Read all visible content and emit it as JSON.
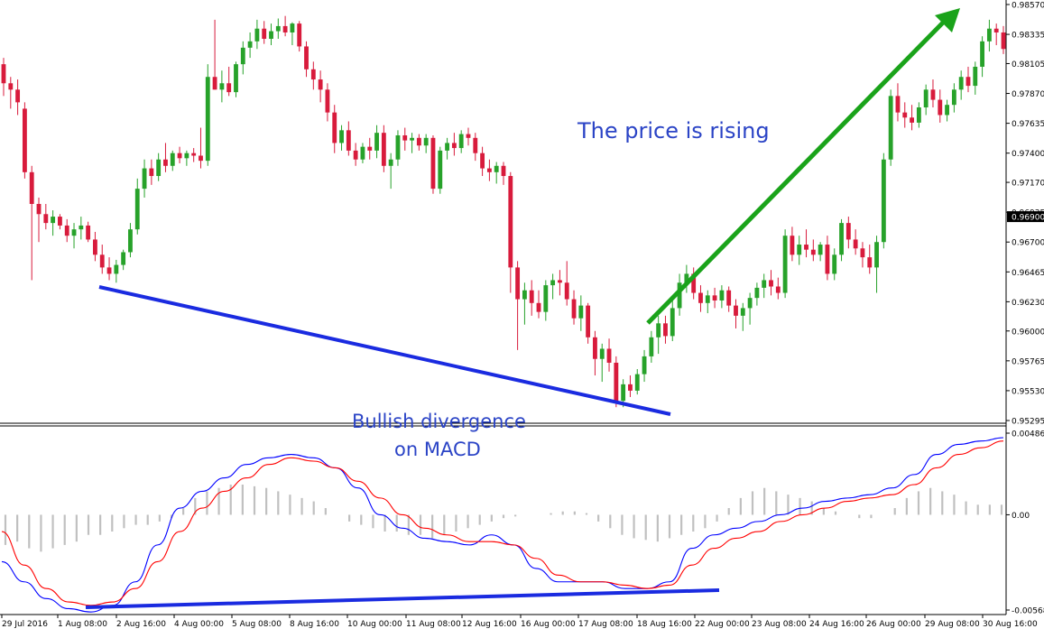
{
  "chart_data": {
    "type": "candlestick",
    "instrument_price_current": "0.96900",
    "price_axis": {
      "ticks": [
        "0.98570",
        "0.98335",
        "0.98105",
        "0.97870",
        "0.97635",
        "0.97400",
        "0.97170",
        "0.96935",
        "0.96700",
        "0.96465",
        "0.96230",
        "0.96000",
        "0.95765",
        "0.95530",
        "0.95295"
      ],
      "current_label": "0.96900",
      "ylim": [
        0.95295,
        0.9857
      ]
    },
    "macd_axis": {
      "ticks": [
        "0.004869",
        "0.00",
        "-0.005682"
      ],
      "ylim": [
        -0.005682,
        0.004869
      ]
    },
    "time_axis": {
      "labels": [
        "29 Jul 2016",
        "1 Aug 08:00",
        "2 Aug 16:00",
        "4 Aug 00:00",
        "5 Aug 08:00",
        "8 Aug 16:00",
        "10 Aug 00:00",
        "11 Aug 08:00",
        "12 Aug 16:00",
        "16 Aug 00:00",
        "17 Aug 08:00",
        "18 Aug 16:00",
        "22 Aug 00:00",
        "23 Aug 08:00",
        "24 Aug 16:00",
        "26 Aug 00:00",
        "29 Aug 08:00",
        "30 Aug 16:00"
      ]
    },
    "candles": [
      {
        "o": 0.981,
        "h": 0.9815,
        "l": 0.9785,
        "c": 0.9795
      },
      {
        "o": 0.9795,
        "h": 0.98,
        "l": 0.9775,
        "c": 0.979
      },
      {
        "o": 0.979,
        "h": 0.9798,
        "l": 0.977,
        "c": 0.978
      },
      {
        "o": 0.9775,
        "h": 0.978,
        "l": 0.972,
        "c": 0.9725
      },
      {
        "o": 0.9725,
        "h": 0.973,
        "l": 0.964,
        "c": 0.97
      },
      {
        "o": 0.97,
        "h": 0.9705,
        "l": 0.967,
        "c": 0.9692
      },
      {
        "o": 0.9692,
        "h": 0.97,
        "l": 0.968,
        "c": 0.9685
      },
      {
        "o": 0.9685,
        "h": 0.9695,
        "l": 0.9675,
        "c": 0.969
      },
      {
        "o": 0.969,
        "h": 0.9692,
        "l": 0.968,
        "c": 0.9683
      },
      {
        "o": 0.9683,
        "h": 0.9688,
        "l": 0.967,
        "c": 0.9675
      },
      {
        "o": 0.9675,
        "h": 0.9685,
        "l": 0.9665,
        "c": 0.968
      },
      {
        "o": 0.968,
        "h": 0.969,
        "l": 0.9672,
        "c": 0.9683
      },
      {
        "o": 0.9683,
        "h": 0.9686,
        "l": 0.967,
        "c": 0.9672
      },
      {
        "o": 0.9672,
        "h": 0.9678,
        "l": 0.9655,
        "c": 0.966
      },
      {
        "o": 0.966,
        "h": 0.9668,
        "l": 0.9645,
        "c": 0.965
      },
      {
        "o": 0.965,
        "h": 0.9658,
        "l": 0.964,
        "c": 0.9645
      },
      {
        "o": 0.9645,
        "h": 0.9656,
        "l": 0.9638,
        "c": 0.9652
      },
      {
        "o": 0.9652,
        "h": 0.9664,
        "l": 0.9648,
        "c": 0.9662
      },
      {
        "o": 0.9662,
        "h": 0.9685,
        "l": 0.9658,
        "c": 0.968
      },
      {
        "o": 0.968,
        "h": 0.972,
        "l": 0.9676,
        "c": 0.9712
      },
      {
        "o": 0.9712,
        "h": 0.9735,
        "l": 0.9705,
        "c": 0.9728
      },
      {
        "o": 0.9728,
        "h": 0.9735,
        "l": 0.9715,
        "c": 0.9722
      },
      {
        "o": 0.9722,
        "h": 0.974,
        "l": 0.9718,
        "c": 0.9735
      },
      {
        "o": 0.9735,
        "h": 0.9748,
        "l": 0.9725,
        "c": 0.973
      },
      {
        "o": 0.973,
        "h": 0.9742,
        "l": 0.9726,
        "c": 0.974
      },
      {
        "o": 0.974,
        "h": 0.9745,
        "l": 0.9732,
        "c": 0.9736
      },
      {
        "o": 0.9736,
        "h": 0.9742,
        "l": 0.973,
        "c": 0.974
      },
      {
        "o": 0.974,
        "h": 0.9744,
        "l": 0.9733,
        "c": 0.9738
      },
      {
        "o": 0.9738,
        "h": 0.976,
        "l": 0.9728,
        "c": 0.9734
      },
      {
        "o": 0.9734,
        "h": 0.981,
        "l": 0.973,
        "c": 0.98
      },
      {
        "o": 0.98,
        "h": 0.9845,
        "l": 0.979,
        "c": 0.979
      },
      {
        "o": 0.979,
        "h": 0.9805,
        "l": 0.978,
        "c": 0.9795
      },
      {
        "o": 0.9795,
        "h": 0.9808,
        "l": 0.9785,
        "c": 0.9788
      },
      {
        "o": 0.9788,
        "h": 0.9812,
        "l": 0.9784,
        "c": 0.981
      },
      {
        "o": 0.981,
        "h": 0.9828,
        "l": 0.9802,
        "c": 0.9823
      },
      {
        "o": 0.9823,
        "h": 0.9835,
        "l": 0.9815,
        "c": 0.9828
      },
      {
        "o": 0.9828,
        "h": 0.9845,
        "l": 0.9822,
        "c": 0.9838
      },
      {
        "o": 0.9838,
        "h": 0.9844,
        "l": 0.9826,
        "c": 0.983
      },
      {
        "o": 0.983,
        "h": 0.9842,
        "l": 0.9825,
        "c": 0.9836
      },
      {
        "o": 0.9836,
        "h": 0.9846,
        "l": 0.983,
        "c": 0.984
      },
      {
        "o": 0.984,
        "h": 0.9848,
        "l": 0.9832,
        "c": 0.9835
      },
      {
        "o": 0.9835,
        "h": 0.9843,
        "l": 0.9825,
        "c": 0.9842
      },
      {
        "o": 0.9842,
        "h": 0.9844,
        "l": 0.982,
        "c": 0.9824
      },
      {
        "o": 0.9824,
        "h": 0.9828,
        "l": 0.98,
        "c": 0.9806
      },
      {
        "o": 0.9806,
        "h": 0.9812,
        "l": 0.979,
        "c": 0.9798
      },
      {
        "o": 0.9798,
        "h": 0.9805,
        "l": 0.978,
        "c": 0.979
      },
      {
        "o": 0.979,
        "h": 0.9795,
        "l": 0.9765,
        "c": 0.9772
      },
      {
        "o": 0.9772,
        "h": 0.9778,
        "l": 0.974,
        "c": 0.9748
      },
      {
        "o": 0.9748,
        "h": 0.9762,
        "l": 0.9742,
        "c": 0.9758
      },
      {
        "o": 0.9758,
        "h": 0.9765,
        "l": 0.9738,
        "c": 0.9742
      },
      {
        "o": 0.9742,
        "h": 0.9748,
        "l": 0.973,
        "c": 0.9735
      },
      {
        "o": 0.9735,
        "h": 0.9748,
        "l": 0.9732,
        "c": 0.9745
      },
      {
        "o": 0.9745,
        "h": 0.9752,
        "l": 0.9735,
        "c": 0.9742
      },
      {
        "o": 0.9742,
        "h": 0.9762,
        "l": 0.9736,
        "c": 0.9756
      },
      {
        "o": 0.9756,
        "h": 0.9762,
        "l": 0.9725,
        "c": 0.973
      },
      {
        "o": 0.973,
        "h": 0.974,
        "l": 0.9712,
        "c": 0.9735
      },
      {
        "o": 0.9735,
        "h": 0.9758,
        "l": 0.973,
        "c": 0.9754
      },
      {
        "o": 0.9754,
        "h": 0.976,
        "l": 0.9742,
        "c": 0.975
      },
      {
        "o": 0.975,
        "h": 0.9756,
        "l": 0.974,
        "c": 0.9752
      },
      {
        "o": 0.9752,
        "h": 0.9755,
        "l": 0.9742,
        "c": 0.9746
      },
      {
        "o": 0.9746,
        "h": 0.9755,
        "l": 0.974,
        "c": 0.9752
      },
      {
        "o": 0.9752,
        "h": 0.9754,
        "l": 0.9708,
        "c": 0.9712
      },
      {
        "o": 0.9712,
        "h": 0.9745,
        "l": 0.9708,
        "c": 0.9742
      },
      {
        "o": 0.9742,
        "h": 0.9752,
        "l": 0.9735,
        "c": 0.9748
      },
      {
        "o": 0.9748,
        "h": 0.9756,
        "l": 0.9738,
        "c": 0.9744
      },
      {
        "o": 0.9744,
        "h": 0.9758,
        "l": 0.974,
        "c": 0.9755
      },
      {
        "o": 0.9755,
        "h": 0.976,
        "l": 0.9746,
        "c": 0.9752
      },
      {
        "o": 0.9752,
        "h": 0.9756,
        "l": 0.9734,
        "c": 0.974
      },
      {
        "o": 0.974,
        "h": 0.9745,
        "l": 0.9722,
        "c": 0.9728
      },
      {
        "o": 0.9728,
        "h": 0.9735,
        "l": 0.9718,
        "c": 0.9725
      },
      {
        "o": 0.9725,
        "h": 0.9733,
        "l": 0.9716,
        "c": 0.973
      },
      {
        "o": 0.973,
        "h": 0.9733,
        "l": 0.9715,
        "c": 0.9722
      },
      {
        "o": 0.9722,
        "h": 0.9725,
        "l": 0.963,
        "c": 0.965
      },
      {
        "o": 0.965,
        "h": 0.9655,
        "l": 0.9585,
        "c": 0.9625
      },
      {
        "o": 0.9625,
        "h": 0.9638,
        "l": 0.9605,
        "c": 0.9632
      },
      {
        "o": 0.9632,
        "h": 0.964,
        "l": 0.9612,
        "c": 0.9622
      },
      {
        "o": 0.9622,
        "h": 0.9632,
        "l": 0.961,
        "c": 0.9615
      },
      {
        "o": 0.9615,
        "h": 0.964,
        "l": 0.9608,
        "c": 0.9636
      },
      {
        "o": 0.9636,
        "h": 0.9645,
        "l": 0.9625,
        "c": 0.964
      },
      {
        "o": 0.964,
        "h": 0.9648,
        "l": 0.9628,
        "c": 0.9638
      },
      {
        "o": 0.9638,
        "h": 0.9655,
        "l": 0.962,
        "c": 0.9625
      },
      {
        "o": 0.9625,
        "h": 0.9632,
        "l": 0.9605,
        "c": 0.961
      },
      {
        "o": 0.961,
        "h": 0.9628,
        "l": 0.96,
        "c": 0.962
      },
      {
        "o": 0.962,
        "h": 0.9622,
        "l": 0.959,
        "c": 0.9595
      },
      {
        "o": 0.9595,
        "h": 0.96,
        "l": 0.9565,
        "c": 0.9578
      },
      {
        "o": 0.9578,
        "h": 0.959,
        "l": 0.956,
        "c": 0.9586
      },
      {
        "o": 0.9586,
        "h": 0.9594,
        "l": 0.9568,
        "c": 0.9575
      },
      {
        "o": 0.9575,
        "h": 0.958,
        "l": 0.954,
        "c": 0.9545
      },
      {
        "o": 0.9545,
        "h": 0.9562,
        "l": 0.954,
        "c": 0.9558
      },
      {
        "o": 0.9558,
        "h": 0.9565,
        "l": 0.9548,
        "c": 0.9553
      },
      {
        "o": 0.9553,
        "h": 0.957,
        "l": 0.955,
        "c": 0.9566
      },
      {
        "o": 0.9566,
        "h": 0.9585,
        "l": 0.956,
        "c": 0.958
      },
      {
        "o": 0.958,
        "h": 0.96,
        "l": 0.9575,
        "c": 0.9595
      },
      {
        "o": 0.9595,
        "h": 0.9612,
        "l": 0.9582,
        "c": 0.9606
      },
      {
        "o": 0.9606,
        "h": 0.9612,
        "l": 0.959,
        "c": 0.9596
      },
      {
        "o": 0.9596,
        "h": 0.9625,
        "l": 0.9592,
        "c": 0.9618
      },
      {
        "o": 0.9618,
        "h": 0.9645,
        "l": 0.9612,
        "c": 0.9638
      },
      {
        "o": 0.9638,
        "h": 0.9652,
        "l": 0.963,
        "c": 0.9645
      },
      {
        "o": 0.9645,
        "h": 0.965,
        "l": 0.9625,
        "c": 0.963
      },
      {
        "o": 0.963,
        "h": 0.9636,
        "l": 0.9615,
        "c": 0.9622
      },
      {
        "o": 0.9622,
        "h": 0.9632,
        "l": 0.9614,
        "c": 0.9628
      },
      {
        "o": 0.9628,
        "h": 0.9634,
        "l": 0.9618,
        "c": 0.9624
      },
      {
        "o": 0.9624,
        "h": 0.9636,
        "l": 0.9618,
        "c": 0.9632
      },
      {
        "o": 0.9632,
        "h": 0.9635,
        "l": 0.9615,
        "c": 0.962
      },
      {
        "o": 0.962,
        "h": 0.9625,
        "l": 0.9602,
        "c": 0.9612
      },
      {
        "o": 0.9612,
        "h": 0.9622,
        "l": 0.96,
        "c": 0.9618
      },
      {
        "o": 0.9618,
        "h": 0.963,
        "l": 0.9605,
        "c": 0.9626
      },
      {
        "o": 0.9626,
        "h": 0.9638,
        "l": 0.962,
        "c": 0.9634
      },
      {
        "o": 0.9634,
        "h": 0.9645,
        "l": 0.9626,
        "c": 0.964
      },
      {
        "o": 0.964,
        "h": 0.9648,
        "l": 0.9628,
        "c": 0.9635
      },
      {
        "o": 0.9635,
        "h": 0.9642,
        "l": 0.9625,
        "c": 0.963
      },
      {
        "o": 0.963,
        "h": 0.968,
        "l": 0.9626,
        "c": 0.9675
      },
      {
        "o": 0.9675,
        "h": 0.9682,
        "l": 0.9655,
        "c": 0.966
      },
      {
        "o": 0.966,
        "h": 0.9675,
        "l": 0.9652,
        "c": 0.9668
      },
      {
        "o": 0.9668,
        "h": 0.968,
        "l": 0.9658,
        "c": 0.9664
      },
      {
        "o": 0.9664,
        "h": 0.9672,
        "l": 0.9655,
        "c": 0.966
      },
      {
        "o": 0.966,
        "h": 0.967,
        "l": 0.9655,
        "c": 0.9668
      },
      {
        "o": 0.9668,
        "h": 0.9675,
        "l": 0.964,
        "c": 0.9645
      },
      {
        "o": 0.9645,
        "h": 0.9665,
        "l": 0.964,
        "c": 0.966
      },
      {
        "o": 0.966,
        "h": 0.9688,
        "l": 0.9655,
        "c": 0.9685
      },
      {
        "o": 0.9685,
        "h": 0.969,
        "l": 0.9665,
        "c": 0.9672
      },
      {
        "o": 0.9672,
        "h": 0.968,
        "l": 0.966,
        "c": 0.9665
      },
      {
        "o": 0.9665,
        "h": 0.967,
        "l": 0.965,
        "c": 0.9658
      },
      {
        "o": 0.9658,
        "h": 0.9668,
        "l": 0.9645,
        "c": 0.965
      },
      {
        "o": 0.965,
        "h": 0.9675,
        "l": 0.963,
        "c": 0.967
      },
      {
        "o": 0.967,
        "h": 0.974,
        "l": 0.9665,
        "c": 0.9735
      },
      {
        "o": 0.9735,
        "h": 0.979,
        "l": 0.973,
        "c": 0.9785
      },
      {
        "o": 0.9785,
        "h": 0.9795,
        "l": 0.9765,
        "c": 0.9772
      },
      {
        "o": 0.9772,
        "h": 0.978,
        "l": 0.976,
        "c": 0.9768
      },
      {
        "o": 0.9768,
        "h": 0.9778,
        "l": 0.9758,
        "c": 0.9764
      },
      {
        "o": 0.9764,
        "h": 0.978,
        "l": 0.976,
        "c": 0.9776
      },
      {
        "o": 0.9776,
        "h": 0.9794,
        "l": 0.977,
        "c": 0.979
      },
      {
        "o": 0.979,
        "h": 0.9798,
        "l": 0.9776,
        "c": 0.9782
      },
      {
        "o": 0.9782,
        "h": 0.979,
        "l": 0.9764,
        "c": 0.977
      },
      {
        "o": 0.977,
        "h": 0.9782,
        "l": 0.9765,
        "c": 0.9778
      },
      {
        "o": 0.9778,
        "h": 0.9795,
        "l": 0.9772,
        "c": 0.979
      },
      {
        "o": 0.979,
        "h": 0.9805,
        "l": 0.9782,
        "c": 0.98
      },
      {
        "o": 0.98,
        "h": 0.9808,
        "l": 0.9788,
        "c": 0.9793
      },
      {
        "o": 0.9793,
        "h": 0.9812,
        "l": 0.9786,
        "c": 0.9808
      },
      {
        "o": 0.9808,
        "h": 0.9832,
        "l": 0.98,
        "c": 0.9828
      },
      {
        "o": 0.9828,
        "h": 0.9845,
        "l": 0.982,
        "c": 0.9838
      },
      {
        "o": 0.9838,
        "h": 0.9842,
        "l": 0.9825,
        "c": 0.9835
      },
      {
        "o": 0.9835,
        "h": 0.984,
        "l": 0.9818,
        "c": 0.9822
      }
    ],
    "macd": {
      "series": [
        {
          "name": "",
          "color": "#0000ff",
          "values": [
            -0.0028,
            -0.004,
            -0.005,
            -0.0056,
            -0.0058,
            -0.0054,
            -0.004,
            -0.0018,
            0.0004,
            0.0014,
            0.0022,
            0.003,
            0.0034,
            0.0036,
            0.0034,
            0.0028,
            0.0016,
            0.0,
            -0.0008,
            -0.0014,
            -0.0016,
            -0.0018,
            -0.0012,
            -0.0018,
            -0.0032,
            -0.004,
            -0.004,
            -0.004,
            -0.0044,
            -0.0044,
            -0.004,
            -0.002,
            -0.0012,
            -0.0008,
            -0.0004,
            0.0,
            0.0004,
            0.0008,
            0.001,
            0.0012,
            0.0016,
            0.0024,
            0.0036,
            0.0042,
            0.0044,
            0.0046
          ]
        },
        {
          "name": "",
          "color": "#ff0000",
          "values": [
            -0.001,
            -0.003,
            -0.0044,
            -0.0052,
            -0.0054,
            -0.0052,
            -0.0044,
            -0.0028,
            -0.001,
            0.0004,
            0.0014,
            0.0022,
            0.003,
            0.0034,
            0.0032,
            0.0028,
            0.002,
            0.001,
            0.0,
            -0.0008,
            -0.0012,
            -0.0016,
            -0.0016,
            -0.0018,
            -0.0026,
            -0.0036,
            -0.004,
            -0.004,
            -0.0042,
            -0.0044,
            -0.0042,
            -0.003,
            -0.002,
            -0.0014,
            -0.001,
            -0.0004,
            0.0,
            0.0004,
            0.0008,
            0.001,
            0.0012,
            0.0018,
            0.0028,
            0.0036,
            0.004,
            0.0044
          ]
        }
      ],
      "histogram_color": "#c0c0c0",
      "histogram": [
        -0.0018,
        -0.0016,
        -0.002,
        -0.0022,
        -0.002,
        -0.0018,
        -0.0016,
        -0.0012,
        -0.0012,
        -0.001,
        -0.0008,
        -0.0006,
        -0.0006,
        -0.0004,
        -0.0002,
        0.0004,
        0.001,
        0.0014,
        0.0016,
        0.0018,
        0.0018,
        0.0017,
        0.0016,
        0.0014,
        0.0012,
        0.001,
        0.0008,
        0.0004,
        0.0,
        -0.0004,
        -0.0006,
        -0.0008,
        -0.001,
        -0.001,
        -0.0012,
        -0.0012,
        -0.0014,
        -0.0012,
        -0.001,
        -0.0008,
        -0.0006,
        -0.0004,
        -0.0002,
        -0.0001,
        0.0,
        0.0,
        0.0001,
        0.0002,
        0.0002,
        0.0001,
        -0.0004,
        -0.0008,
        -0.0012,
        -0.0014,
        -0.0015,
        -0.0016,
        -0.0014,
        -0.0012,
        -0.001,
        -0.0008,
        -0.0004,
        0.0004,
        0.001,
        0.0014,
        0.0016,
        0.0014,
        0.0012,
        0.001,
        0.0008,
        0.0004,
        0.0002,
        0.0,
        -0.0002,
        -0.0002,
        0.0,
        0.0004,
        0.001,
        0.0014,
        0.0016,
        0.0014,
        0.0012,
        0.0008,
        0.0006,
        0.0006,
        0.0006
      ]
    },
    "annotations": {
      "rising_text": "The price is rising",
      "divergence_text_line1": "Bullish divergence",
      "divergence_text_line2": "on MACD"
    },
    "colors": {
      "bull": "#27a22a",
      "bear": "#d81b3c",
      "trendline": "#1a2be0",
      "arrow": "#1aa31a",
      "annotation_text": "#2b44c6"
    }
  }
}
